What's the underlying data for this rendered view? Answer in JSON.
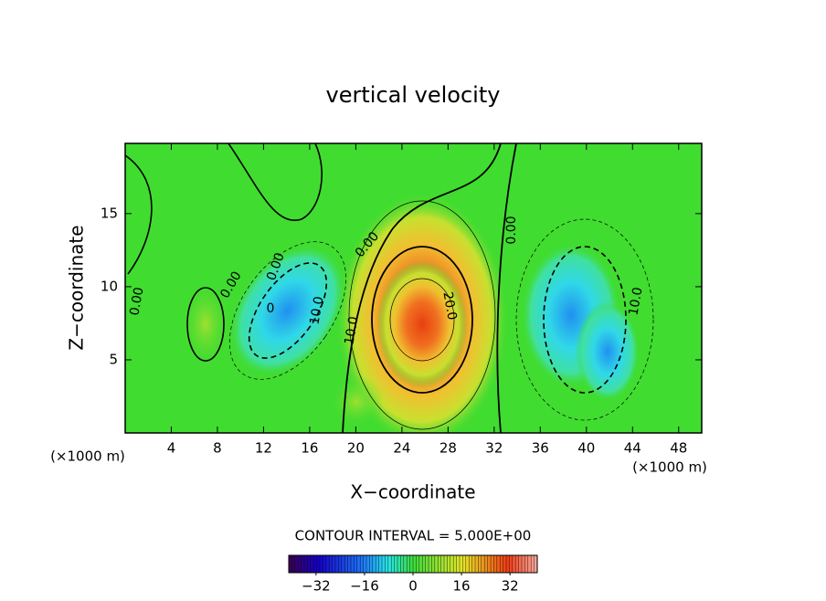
{
  "chart_data": {
    "type": "contour",
    "title": "vertical velocity",
    "x_label": "X−coordinate",
    "y_label": "Z−coordinate",
    "x_unit": "(×1000 m)",
    "y_unit": "(×1000 m)",
    "xlim": [
      0,
      50
    ],
    "xticks": [
      4,
      8,
      12,
      16,
      20,
      24,
      28,
      32,
      36,
      40,
      44,
      48
    ],
    "ylim": [
      0,
      19.8
    ],
    "yticks": [
      5,
      10,
      15
    ],
    "contour_labels": [
      "0.00",
      "0.00",
      "0.00",
      "0",
      "0.00",
      "10.0",
      "10.0",
      "20.0",
      "0.00",
      "10.0"
    ],
    "interval_text": "CONTOUR INTERVAL = 5.000E+00",
    "colorbar": {
      "clim": [
        -41,
        41
      ],
      "ticks": [
        {
          "value": -32,
          "label": "−32"
        },
        {
          "value": -16,
          "label": "−16"
        },
        0,
        16,
        32
      ]
    }
  }
}
